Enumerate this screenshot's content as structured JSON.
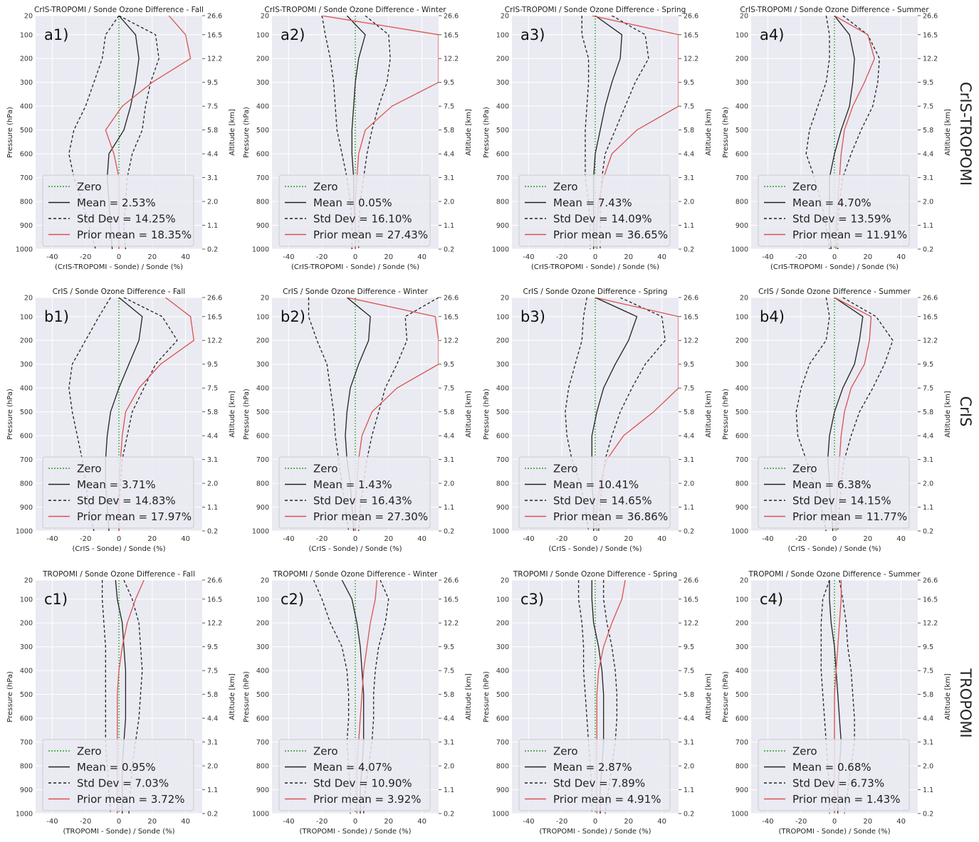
{
  "figure": {
    "row_labels": [
      "CrIS-TROPOMI",
      "CrIS",
      "TROPOMI"
    ]
  },
  "axes_common": {
    "ylabel": "Pressure (hPa)",
    "ylabel_right": "Altitude [km]",
    "pressure_ticks": [
      20,
      100,
      200,
      300,
      400,
      500,
      600,
      700,
      800,
      900,
      1000
    ],
    "altitude_tick_labels": [
      "26.6",
      "16.5",
      "12.2",
      "9.5",
      "7.5",
      "5.8",
      "4.4",
      "3.1",
      "2.0",
      "1.1",
      "0.2"
    ],
    "x_ticks": [
      -40,
      -20,
      0,
      20,
      40
    ],
    "xlim": [
      -50,
      50
    ],
    "ylim": [
      1000,
      20
    ],
    "legend_labels": [
      "Zero",
      "Mean",
      "Std Dev",
      "Prior mean"
    ],
    "colors": {
      "background": "#eaeaf2",
      "grid": "#ffffff",
      "zero": "#2ca02c",
      "mean": "#222222",
      "std": "#222222",
      "prior": "#d9534f"
    }
  },
  "chart_data": [
    {
      "panel": "a1)",
      "title": "CrIS-TROPOMI / Sonde Ozone Difference - Fall",
      "xlabel": "(CrIS-TROPOMI - Sonde) / Sonde (%)",
      "mean": 2.53,
      "std": 14.25,
      "prior": 18.35,
      "p": [
        20,
        100,
        200,
        300,
        400,
        500,
        600,
        700,
        800,
        900,
        1000
      ],
      "mean_profile": [
        0,
        10,
        12,
        10,
        7,
        3,
        -6,
        -7,
        -6,
        -5,
        -4
      ],
      "std_left": [
        0,
        -8,
        -10,
        -15,
        -20,
        -27,
        -30,
        -27,
        -22,
        -18,
        -14
      ],
      "std_right": [
        0,
        22,
        24,
        19,
        16,
        14,
        8,
        5,
        4,
        3,
        4
      ],
      "prior_profile": [
        30,
        40,
        43,
        20,
        2,
        -8,
        -3,
        0,
        0,
        0,
        0
      ]
    },
    {
      "panel": "a2)",
      "title": "CrIS-TROPOMI / Sonde Ozone Difference - Winter",
      "xlabel": "(CrIS-TROPOMI - Sonde) / Sonde (%)",
      "mean": 0.05,
      "std": 16.1,
      "prior": 27.43,
      "p": [
        20,
        100,
        200,
        300,
        400,
        500,
        600,
        700,
        800,
        900,
        1000
      ],
      "mean_profile": [
        -5,
        6,
        2,
        0,
        -1,
        -2,
        -2,
        -1,
        -1,
        0,
        0
      ],
      "std_left": [
        -20,
        -18,
        -15,
        -13,
        -12,
        -11,
        -8,
        -5,
        -3,
        -2,
        -2
      ],
      "std_right": [
        6,
        20,
        21,
        19,
        14,
        10,
        7,
        5,
        3,
        2,
        2
      ],
      "prior_profile": [
        -20,
        50,
        75,
        55,
        22,
        6,
        2,
        1,
        0,
        0,
        0
      ]
    },
    {
      "panel": "a3)",
      "title": "CrIS-TROPOMI / Sonde Ozone Difference - Spring",
      "xlabel": "(CrIS-TROPOMI - Sonde) / Sonde (%)",
      "mean": 7.43,
      "std": 14.09,
      "prior": 36.65,
      "p": [
        20,
        100,
        200,
        300,
        400,
        500,
        600,
        700,
        800,
        900,
        1000
      ],
      "mean_profile": [
        0,
        16,
        15,
        10,
        6,
        3,
        0,
        -1,
        -1,
        -1,
        -1
      ],
      "std_left": [
        -8,
        -8,
        -4,
        -4,
        -5,
        -6,
        -6,
        -6,
        -4,
        -3,
        -3
      ],
      "std_right": [
        10,
        30,
        32,
        24,
        18,
        12,
        6,
        4,
        3,
        3,
        3
      ],
      "prior_profile": [
        -2,
        50,
        90,
        75,
        50,
        25,
        10,
        5,
        2,
        1,
        1
      ]
    },
    {
      "panel": "a4)",
      "title": "CrIS-TROPOMI / Sonde Ozone Difference - Summer",
      "xlabel": "(CrIS-TROPOMI - Sonde) / Sonde (%)",
      "mean": 4.7,
      "std": 13.59,
      "prior": 11.91,
      "p": [
        20,
        100,
        200,
        300,
        400,
        500,
        600,
        700,
        800,
        900,
        1000
      ],
      "mean_profile": [
        0,
        9,
        12,
        11,
        9,
        4,
        0,
        -3,
        -3,
        -3,
        -2
      ],
      "std_left": [
        -5,
        -3,
        -3,
        -5,
        -10,
        -15,
        -17,
        -12,
        -8,
        -5,
        -3
      ],
      "std_right": [
        5,
        20,
        27,
        26,
        23,
        16,
        10,
        5,
        3,
        2,
        2
      ],
      "prior_profile": [
        0,
        20,
        24,
        18,
        11,
        6,
        4,
        3,
        2,
        1,
        1
      ]
    },
    {
      "panel": "b1)",
      "title": "CrIS / Sonde Ozone Difference - Fall",
      "xlabel": "(CrIS - Sonde) / Sonde (%)",
      "mean": 3.71,
      "std": 14.83,
      "prior": 17.97,
      "p": [
        20,
        100,
        200,
        300,
        400,
        500,
        600,
        700,
        800,
        900,
        1000
      ],
      "mean_profile": [
        0,
        14,
        12,
        6,
        0,
        -5,
        -7,
        -8,
        -8,
        -7,
        -6
      ],
      "std_left": [
        -5,
        -12,
        -20,
        -28,
        -30,
        -28,
        -25,
        -22,
        -20,
        -18,
        -15
      ],
      "std_right": [
        3,
        26,
        35,
        22,
        15,
        8,
        5,
        2,
        1,
        0,
        0
      ],
      "prior_profile": [
        28,
        43,
        45,
        25,
        12,
        4,
        2,
        1,
        0,
        0,
        0
      ]
    },
    {
      "panel": "b2)",
      "title": "CrIS / Sonde Ozone Difference - Winter",
      "xlabel": "(CrIS - Sonde) / Sonde (%)",
      "mean": 1.43,
      "std": 16.43,
      "prior": 27.3,
      "p": [
        20,
        100,
        200,
        300,
        400,
        500,
        600,
        700,
        800,
        900,
        1000
      ],
      "mean_profile": [
        -5,
        9,
        8,
        2,
        -3,
        -5,
        -6,
        -5,
        -3,
        -2,
        -1
      ],
      "std_left": [
        -28,
        -28,
        -23,
        -17,
        -15,
        -13,
        -12,
        -10,
        -8,
        -6,
        -4
      ],
      "std_right": [
        50,
        30,
        31,
        25,
        18,
        14,
        10,
        7,
        5,
        3,
        2
      ],
      "prior_profile": [
        -5,
        48,
        80,
        58,
        25,
        10,
        4,
        2,
        1,
        0,
        0
      ]
    },
    {
      "panel": "b3)",
      "title": "CrIS / Sonde Ozone Difference - Spring",
      "xlabel": "(CrIS - Sonde) / Sonde (%)",
      "mean": 10.41,
      "std": 14.65,
      "prior": 36.86,
      "p": [
        20,
        100,
        200,
        300,
        400,
        500,
        600,
        700,
        800,
        900,
        1000
      ],
      "mean_profile": [
        0,
        25,
        20,
        12,
        5,
        1,
        -2,
        -2,
        -2,
        -1,
        -1
      ],
      "std_left": [
        -5,
        -7,
        -8,
        -12,
        -16,
        -18,
        -17,
        -14,
        -9,
        -6,
        -4
      ],
      "std_right": [
        15,
        40,
        42,
        30,
        22,
        15,
        10,
        6,
        4,
        3,
        2
      ],
      "prior_profile": [
        0,
        50,
        90,
        85,
        60,
        35,
        17,
        7,
        3,
        1,
        1
      ]
    },
    {
      "panel": "b4)",
      "title": "CrIS / Sonde Ozone Difference - Summer",
      "xlabel": "(CrIS - Sonde) / Sonde (%)",
      "mean": 6.38,
      "std": 14.15,
      "prior": 11.77,
      "p": [
        20,
        100,
        200,
        300,
        400,
        500,
        600,
        700,
        800,
        900,
        1000
      ],
      "mean_profile": [
        0,
        17,
        15,
        12,
        5,
        0,
        -3,
        -4,
        -3,
        -2,
        -1
      ],
      "std_left": [
        -5,
        -3,
        -5,
        -15,
        -20,
        -23,
        -22,
        -17,
        -12,
        -8,
        -5
      ],
      "std_right": [
        5,
        25,
        35,
        30,
        23,
        15,
        10,
        6,
        4,
        3,
        2
      ],
      "prior_profile": [
        0,
        22,
        21,
        18,
        10,
        6,
        4,
        3,
        2,
        1,
        1
      ]
    },
    {
      "panel": "c1)",
      "title": "TROPOMI / Sonde Ozone Difference - Fall",
      "xlabel": "(TROPOMI - Sonde) / Sonde (%)",
      "mean": 0.95,
      "std": 7.03,
      "prior": 3.72,
      "p": [
        20,
        100,
        200,
        300,
        400,
        500,
        600,
        700,
        800,
        900,
        1000
      ],
      "mean_profile": [
        -2,
        -1,
        2,
        3,
        4,
        4,
        4,
        3,
        2,
        2,
        2
      ],
      "std_left": [
        -10,
        -10,
        -9,
        -8,
        -8,
        -8,
        -8,
        -8,
        -7,
        -6,
        -5
      ],
      "std_right": [
        3,
        8,
        12,
        13,
        14,
        13,
        12,
        10,
        8,
        7,
        6
      ],
      "prior_profile": [
        15,
        10,
        5,
        2,
        0,
        -1,
        -1,
        -1,
        -1,
        -1,
        -1
      ]
    },
    {
      "panel": "c2)",
      "title": "TROPOMI / Sonde Ozone Difference - Winter",
      "xlabel": "(TROPOMI - Sonde) / Sonde (%)",
      "mean": 4.07,
      "std": 10.9,
      "prior": 3.92,
      "p": [
        20,
        100,
        200,
        300,
        400,
        500,
        600,
        700,
        800,
        900,
        1000
      ],
      "mean_profile": [
        -8,
        -2,
        1,
        3,
        4,
        5,
        5,
        5,
        4,
        3,
        3
      ],
      "std_left": [
        -25,
        -20,
        -15,
        -8,
        -5,
        -4,
        -4,
        -5,
        -4,
        -3,
        -3
      ],
      "std_right": [
        15,
        20,
        18,
        14,
        12,
        11,
        11,
        10,
        8,
        6,
        5
      ],
      "prior_profile": [
        13,
        12,
        9,
        7,
        5,
        4,
        3,
        2,
        1,
        1,
        1
      ]
    },
    {
      "panel": "c3)",
      "title": "TROPOMI / Sonde Ozone Difference - Spring",
      "xlabel": "(TROPOMI - Sonde) / Sonde (%)",
      "mean": 2.87,
      "std": 7.89,
      "prior": 4.91,
      "p": [
        20,
        100,
        200,
        300,
        400,
        500,
        600,
        700,
        800,
        900,
        1000
      ],
      "mean_profile": [
        -2,
        -2,
        -1,
        2,
        4,
        5,
        5,
        5,
        4,
        3,
        3
      ],
      "std_left": [
        -10,
        -10,
        -8,
        -7,
        -7,
        -6,
        -5,
        -4,
        -3,
        -2,
        -2
      ],
      "std_right": [
        5,
        5,
        7,
        10,
        12,
        13,
        13,
        12,
        10,
        8,
        6
      ],
      "prior_profile": [
        18,
        16,
        10,
        5,
        2,
        1,
        1,
        1,
        1,
        1,
        1
      ]
    },
    {
      "panel": "c4)",
      "title": "TROPOMI / Sonde Ozone Difference - Summer",
      "xlabel": "(TROPOMI - Sonde) / Sonde (%)",
      "mean": 0.68,
      "std": 6.73,
      "prior": 1.43,
      "p": [
        20,
        100,
        200,
        300,
        400,
        500,
        600,
        700,
        800,
        900,
        1000
      ],
      "mean_profile": [
        -3,
        -3,
        -2,
        0,
        1,
        2,
        3,
        4,
        3,
        2,
        2
      ],
      "std_left": [
        -3,
        -7,
        -8,
        -8,
        -8,
        -7,
        -6,
        -5,
        -4,
        -3,
        -3
      ],
      "std_right": [
        3,
        5,
        7,
        8,
        10,
        11,
        12,
        12,
        10,
        8,
        6
      ],
      "prior_profile": [
        4,
        4,
        3,
        2,
        1,
        0,
        0,
        0,
        0,
        0,
        0
      ]
    }
  ]
}
